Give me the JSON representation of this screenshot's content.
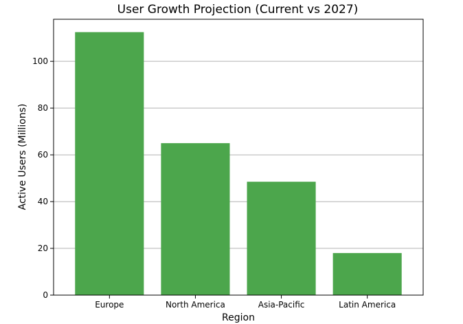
{
  "chart_data": {
    "type": "bar",
    "title": "User Growth Projection (Current vs 2027)",
    "xlabel": "Region",
    "ylabel": "Active Users (Millions)",
    "categories": [
      "Europe",
      "North America",
      "Asia-Pacific",
      "Latin America"
    ],
    "series": [
      {
        "values": [
          112.5,
          65,
          48.5,
          18
        ]
      }
    ],
    "ylim": [
      0,
      118
    ],
    "yticks": [
      "0",
      "20",
      "40",
      "60",
      "80",
      "100"
    ],
    "grid": "horizontal",
    "legend": "none",
    "colors": {
      "bar": "#4ca64c",
      "grid": "#b0b0b0",
      "axis": "#000000"
    }
  }
}
